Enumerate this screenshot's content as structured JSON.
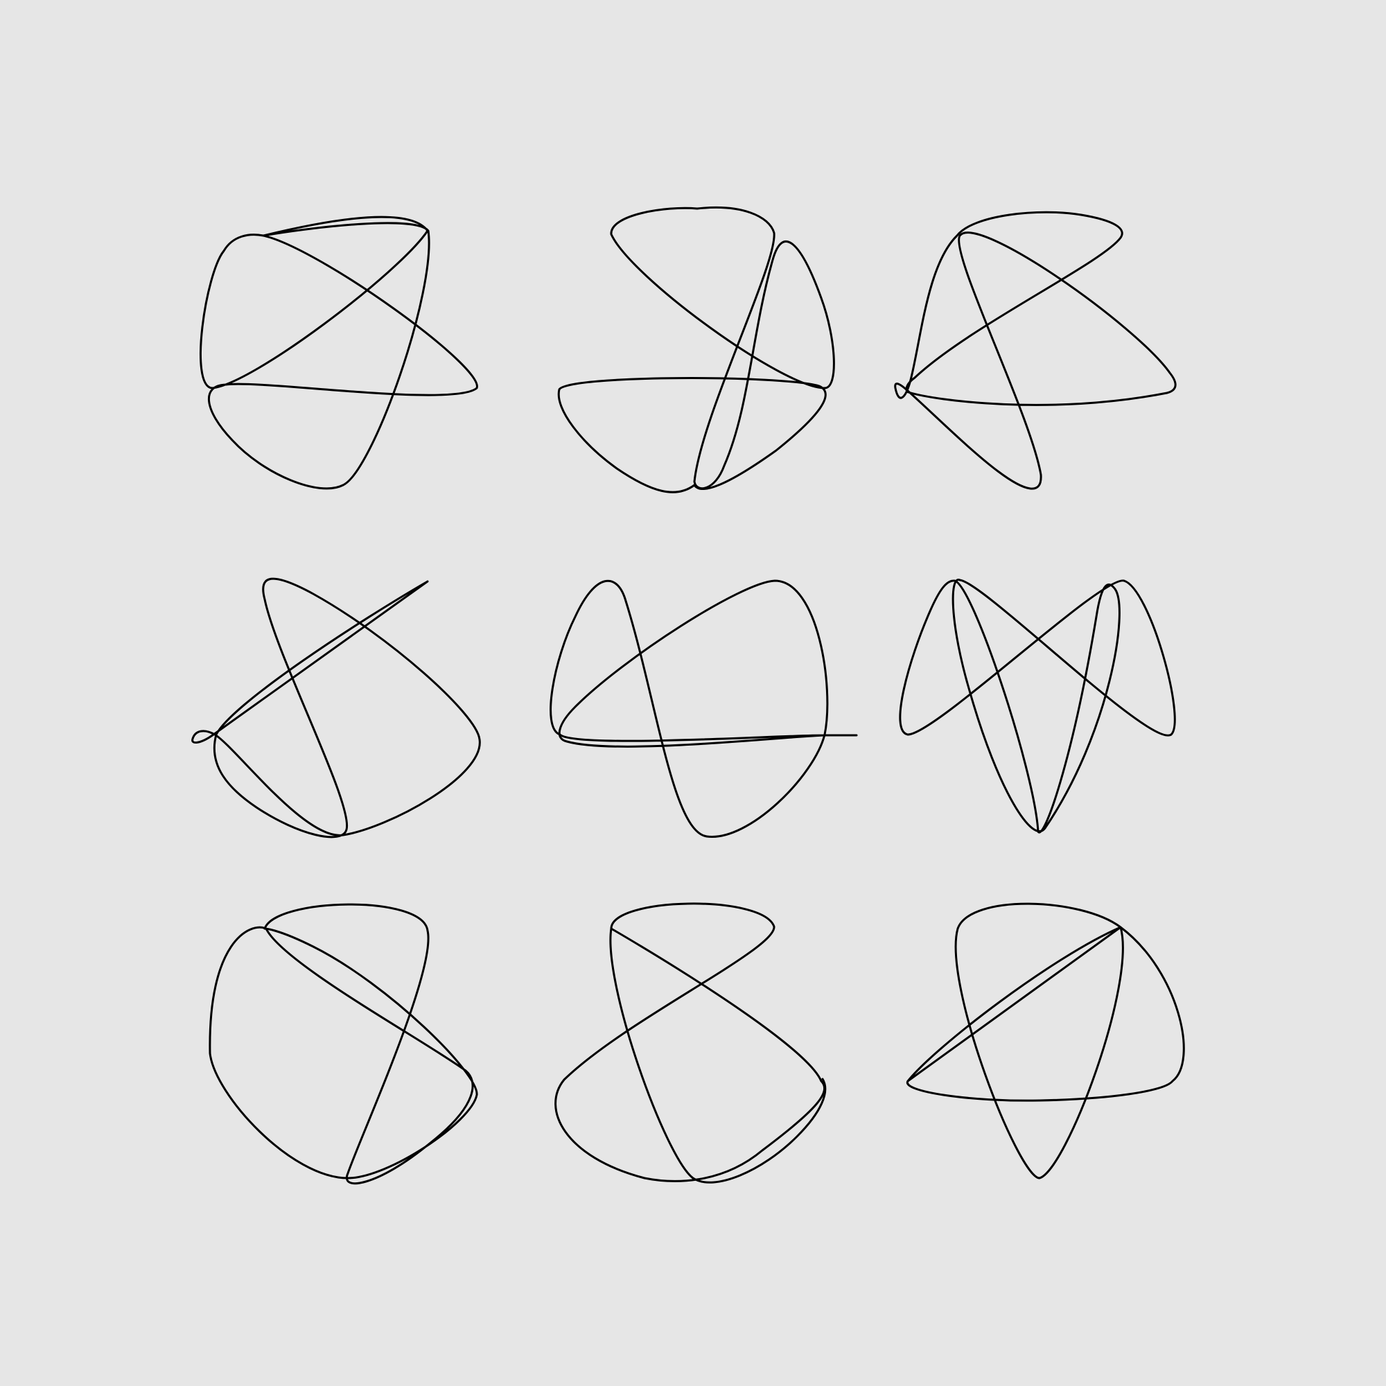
{
  "background_color": "#e6e6e6",
  "stroke_color": "#000000",
  "figures": [
    {
      "name": "knot-figure-1"
    },
    {
      "name": "knot-figure-2"
    },
    {
      "name": "knot-figure-3"
    },
    {
      "name": "knot-figure-4"
    },
    {
      "name": "knot-figure-5"
    },
    {
      "name": "knot-figure-6"
    },
    {
      "name": "knot-figure-7"
    },
    {
      "name": "knot-figure-8"
    },
    {
      "name": "knot-figure-9"
    }
  ]
}
